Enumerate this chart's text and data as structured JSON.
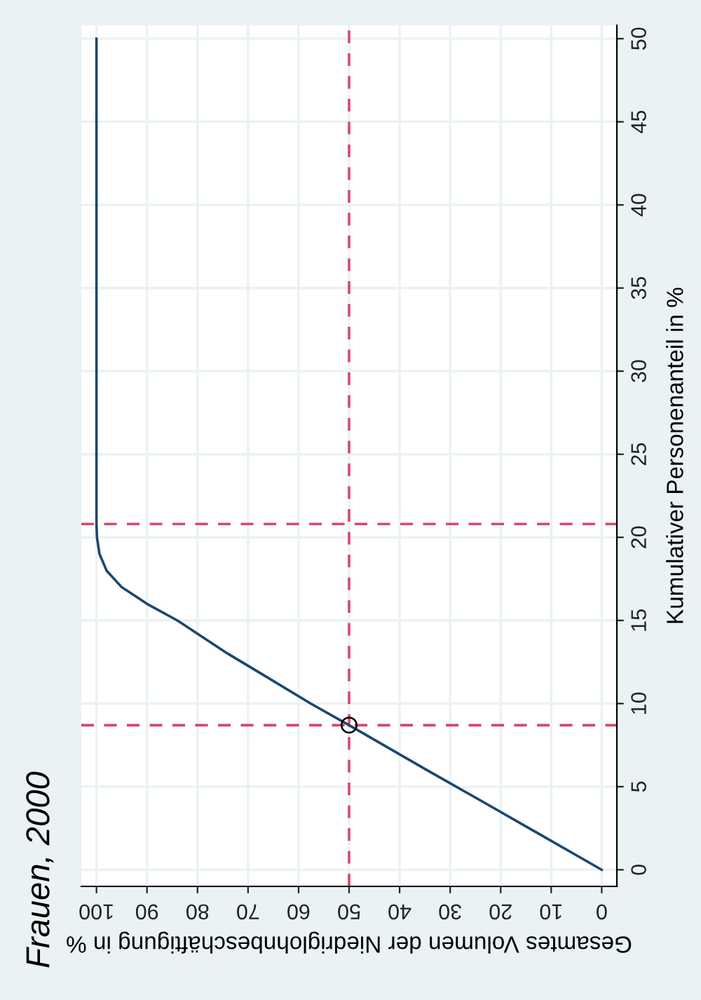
{
  "chart_data": {
    "type": "line",
    "title": "Frauen, 2000",
    "xlabel": "Gesamtes Volumen der Niedriglohnbeschäftigung in %",
    "ylabel": "Kumulativer Personenanteil in %",
    "series": [
      {
        "color": "#1a476f",
        "x": [
          0,
          11.5,
          23,
          34.6,
          50,
          57.6,
          68.5,
          74,
          79,
          84,
          90,
          95,
          98,
          99.4,
          99.9,
          100,
          100
        ],
        "values": [
          0,
          2,
          4,
          6,
          8.7,
          10,
          12,
          13,
          14,
          15,
          16,
          17,
          18,
          19,
          20,
          20.8,
          50
        ]
      },
      {
        "type": "scatter",
        "color": "#000000",
        "marker": "circle",
        "x": [
          50
        ],
        "values": [
          8.7
        ]
      }
    ],
    "xlim": [
      103,
      -3
    ],
    "ylim": [
      -1,
      50.8
    ],
    "xticks": [
      0,
      10,
      20,
      30,
      40,
      50,
      60,
      70,
      80,
      90,
      100
    ],
    "yticks": [
      0,
      5,
      10,
      15,
      20,
      25,
      30,
      35,
      40,
      45,
      50
    ],
    "grid": true,
    "ref_lines": [
      {
        "axis": "y",
        "value": 8.7,
        "color": "#d6496a",
        "line_style": "dashed"
      },
      {
        "axis": "y",
        "value": 20.8,
        "color": "#d6496a",
        "line_style": "dashed"
      },
      {
        "axis": "x",
        "value": 50,
        "color": "#d6496a",
        "line_style": "dashed"
      }
    ]
  }
}
